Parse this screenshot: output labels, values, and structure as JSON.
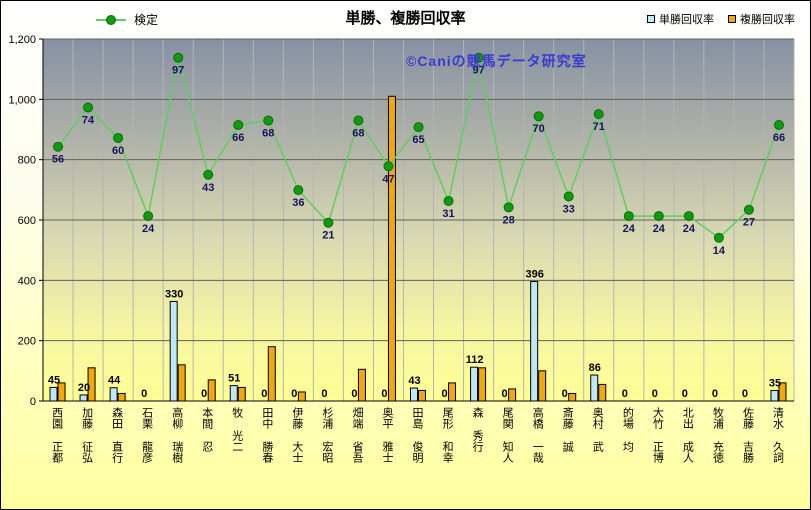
{
  "title": "単勝、複勝回収率",
  "watermark": "©Caniの競馬データ研究室",
  "legend": {
    "line": "検定",
    "bar1": "単勝回収率",
    "bar2": "複勝回収率"
  },
  "colors": {
    "line": "#5ecf5e",
    "marker": "#0f9b0f",
    "marker_edge": "#0a6b0a",
    "bar1_fill": "#bfe7f7",
    "bar2_fill": "#f0a80a",
    "bar_border": "#000000",
    "label_bar": "#000000",
    "label_line": "#14145a",
    "watermark": "#3a3ad0",
    "grid_h": "#606060",
    "grid_v": "#b4b4b4",
    "axis": "#000000",
    "plot_bg_top": "#8791a3",
    "plot_bg_bottom": "#ffff96"
  },
  "chart_data": {
    "type": "bar",
    "title": "単勝、複勝回収率",
    "categories": [
      "西園 正都",
      "加藤 征弘",
      "森田 直行",
      "石栗 龍彦",
      "高柳 瑞樹",
      "本間 忍",
      "牧 光二",
      "田中 勝春",
      "伊藤 大士",
      "杉浦 宏昭",
      "畑端 省吾",
      "奥平 雅士",
      "田島 俊明",
      "尾形 和幸",
      "森 秀行",
      "尾関 知人",
      "高橋 一哉",
      "斎藤 誠",
      "奥村 武",
      "的場 均",
      "大竹 正博",
      "北出 成人",
      "牧浦 充徳",
      "佐藤 吉勝",
      "清水 久詞"
    ],
    "series": [
      {
        "name": "単勝回収率",
        "type": "bar",
        "values": [
          45,
          20,
          44,
          0,
          330,
          0,
          51,
          0,
          0,
          0,
          0,
          0,
          43,
          0,
          112,
          0,
          396,
          0,
          86,
          0,
          0,
          0,
          0,
          0,
          35
        ]
      },
      {
        "name": "複勝回収率",
        "type": "bar",
        "values": [
          60,
          110,
          25,
          0,
          120,
          70,
          45,
          180,
          30,
          0,
          105,
          1010,
          35,
          60,
          110,
          40,
          100,
          25,
          55,
          0,
          0,
          0,
          0,
          0,
          60
        ]
      },
      {
        "name": "検定",
        "type": "line",
        "point_labels": [
          56,
          74,
          60,
          24,
          97,
          43,
          66,
          68,
          36,
          21,
          68,
          47,
          65,
          31,
          97,
          28,
          70,
          33,
          71,
          24,
          24,
          24,
          14,
          27,
          66
        ],
        "plotted_values": [
          843,
          973,
          872,
          613,
          1138,
          750,
          915,
          930,
          699,
          591,
          930,
          778,
          908,
          663,
          1138,
          642,
          944,
          678,
          951,
          613,
          613,
          613,
          541,
          634,
          915
        ]
      }
    ],
    "ylim": [
      0,
      1200
    ],
    "ytick_step": 200,
    "y_ticks": [
      {
        "value": 0,
        "label": "0"
      },
      {
        "value": 200,
        "label": "200"
      },
      {
        "value": 400,
        "label": "400"
      },
      {
        "value": 600,
        "label": "600"
      },
      {
        "value": 800,
        "label": "800"
      },
      {
        "value": 1000,
        "label": "1,000"
      },
      {
        "value": 1200,
        "label": "1,200"
      }
    ],
    "grid": true,
    "legend_position": "top"
  }
}
